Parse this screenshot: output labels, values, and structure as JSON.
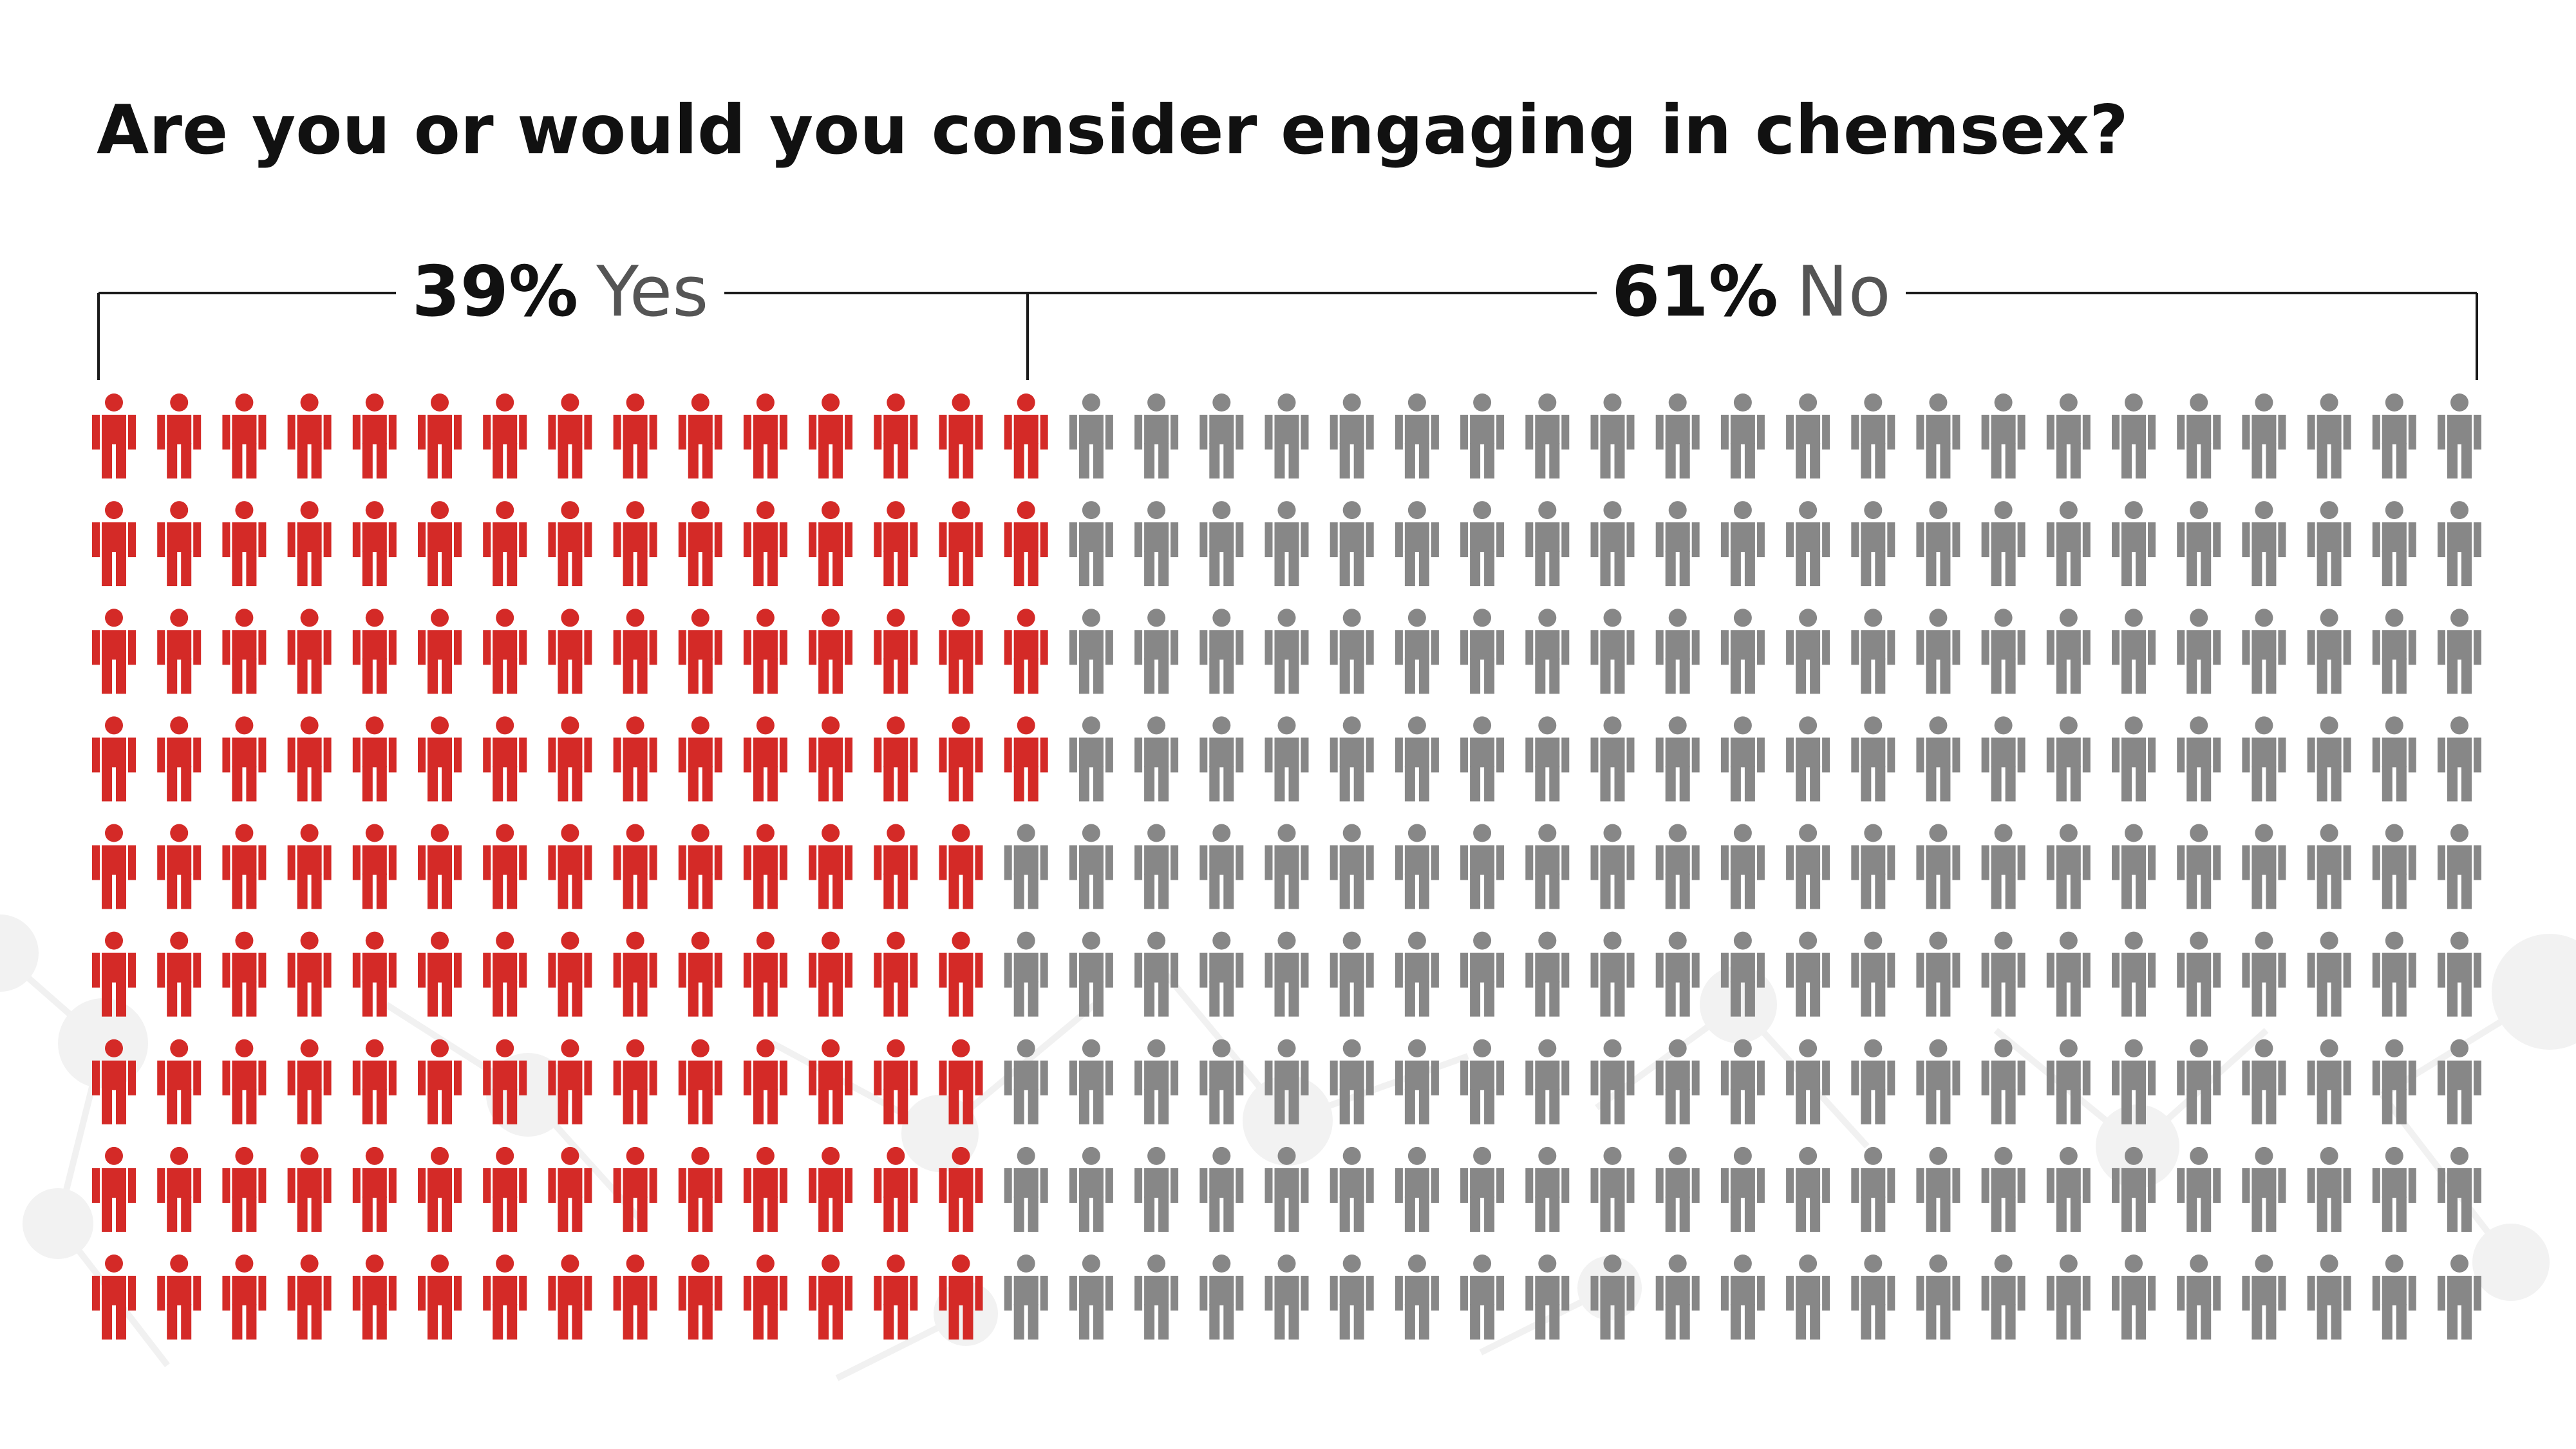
{
  "chart_data": {
    "type": "pictogram",
    "title": "Are you or would you consider engaging in chemsex?",
    "grid": {
      "columns": 37,
      "rows": 9,
      "total_icons": 333,
      "fill_order": "column-major"
    },
    "series": [
      {
        "name": "Yes",
        "percent_label": "39%",
        "value": 39,
        "icons": 130,
        "color": "#d42a27"
      },
      {
        "name": "No",
        "percent_label": "61%",
        "value": 61,
        "icons": 203,
        "color": "#878787"
      }
    ]
  }
}
